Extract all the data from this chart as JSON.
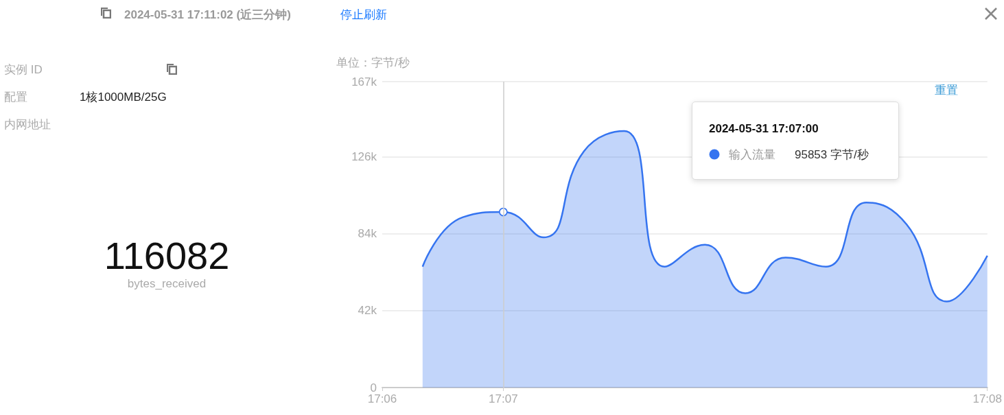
{
  "chart_data": {
    "type": "area",
    "title": "2024-05-31 17:11:02  (近三分钟)",
    "ylabel": "单位：字节/秒",
    "categories": [
      "17:06",
      null,
      null,
      "17:07",
      null,
      null,
      null,
      null,
      null,
      null,
      null,
      null,
      null,
      null,
      null,
      "17:08"
    ],
    "series": [
      {
        "name": "输入流量",
        "color": "#3574f0",
        "values": [
          null,
          66000,
          93000,
          95853,
          82000,
          129000,
          140000,
          66000,
          78000,
          51500,
          71000,
          66000,
          101000,
          89000,
          47000,
          72000
        ]
      }
    ],
    "ylim": [
      0,
      167000
    ],
    "yticks": [
      0,
      {
        "value": 42000,
        "label": "42k"
      },
      {
        "value": 84000,
        "label": "84k"
      },
      {
        "value": 126000,
        "label": "126k"
      },
      {
        "value": 167000,
        "label": "167k"
      }
    ],
    "grid": "y",
    "legend": "top right",
    "marker": "none",
    "line_style": "solid",
    "ref_lines": [
      {
        "axis": "x",
        "value": "17:07",
        "color": "#cccccc"
      }
    ],
    "annotations": [
      "停止刷新",
      "实例 ID",
      "配置",
      "1核1000MB/25G",
      "内网地址",
      "116082",
      "bytes_received",
      "重置",
      "2024-05-31 17:07:00",
      "95853 字节/秒"
    ]
  }
}
